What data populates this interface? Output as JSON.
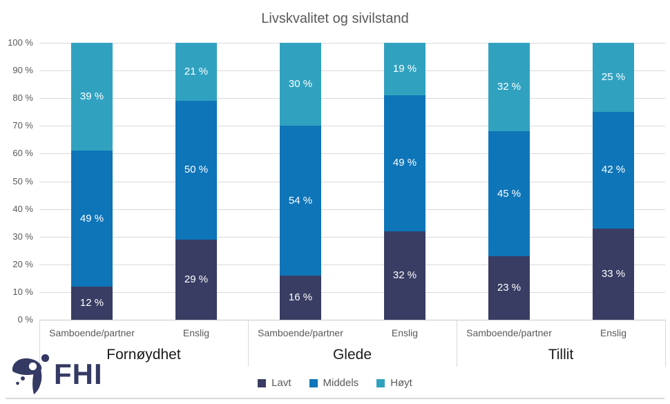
{
  "title": "Livskvalitet og sivilstand",
  "chart_data": {
    "type": "bar",
    "stacked": true,
    "title": "Livskvalitet og sivilstand",
    "xlabel": "",
    "ylabel": "",
    "ylim": [
      0,
      100
    ],
    "grid": true,
    "legend_position": "bottom",
    "ytick_labels": [
      "0 %",
      "10 %",
      "20 %",
      "30 %",
      "40 %",
      "50 %",
      "60 %",
      "70 %",
      "80 %",
      "90 %",
      "100 %"
    ],
    "groups": [
      "Fornøydhet",
      "Glede",
      "Tillit"
    ],
    "categories": [
      "Samboende/partner",
      "Enslig",
      "Samboende/partner",
      "Enslig",
      "Samboende/partner",
      "Enslig"
    ],
    "series": [
      {
        "name": "Lavt",
        "color": "#393D63",
        "values": [
          12,
          29,
          16,
          32,
          23,
          33
        ]
      },
      {
        "name": "Middels",
        "color": "#0E75B9",
        "values": [
          49,
          50,
          54,
          49,
          45,
          42
        ]
      },
      {
        "name": "Høyt",
        "color": "#30A2C0",
        "values": [
          39,
          21,
          30,
          19,
          32,
          25
        ]
      }
    ],
    "data_label_suffix": " %"
  },
  "colors": {
    "title_text": "#595959",
    "axis_text": "#595959",
    "category_text": "#595959",
    "group_text": "#1A1A1A",
    "legend_text": "#595959",
    "gridline": "#D9D9D9",
    "axis_line": "#C6C6C6",
    "separator": "#D9D9D9",
    "data_label": "#FFFFFF",
    "logo": "#343A63",
    "bottom_rule": "#D9D6DC"
  },
  "footer": {
    "logo_text": "FHI"
  }
}
